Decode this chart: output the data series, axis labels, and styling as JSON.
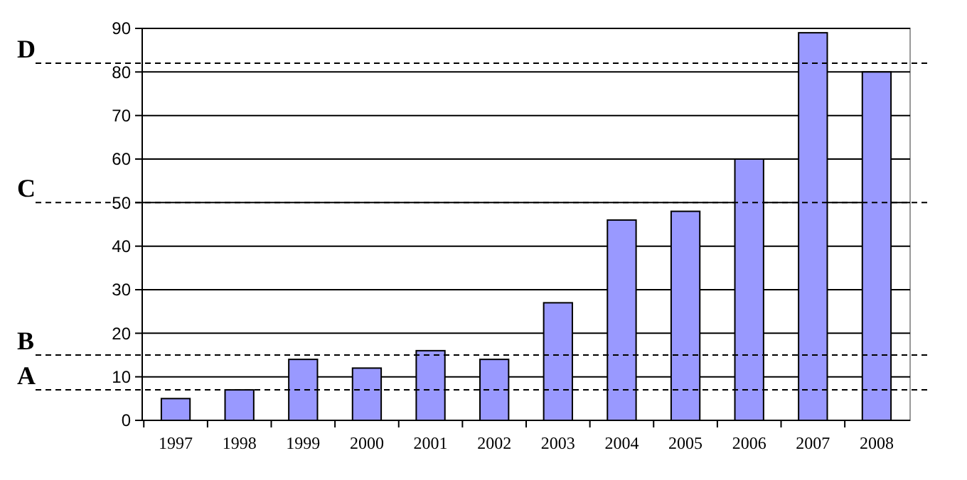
{
  "chart_data": {
    "type": "bar",
    "categories": [
      "1997",
      "1998",
      "1999",
      "2000",
      "2001",
      "2002",
      "2003",
      "2004",
      "2005",
      "2006",
      "2007",
      "2008"
    ],
    "series": [
      {
        "color": "#9999ff",
        "values": [
          5,
          7,
          14,
          12,
          16,
          14,
          27,
          46,
          48,
          60,
          89,
          80
        ]
      }
    ],
    "ylim": [
      0,
      90
    ],
    "yticks": [
      0,
      10,
      20,
      30,
      40,
      50,
      60,
      70,
      80,
      90
    ],
    "grid": "y",
    "ref_lines": [
      {
        "axis": "y",
        "value": 7,
        "label": "A",
        "line_style": "dashed",
        "color": "#000000"
      },
      {
        "axis": "y",
        "value": 15,
        "label": "B",
        "line_style": "dashed",
        "color": "#000000"
      },
      {
        "axis": "y",
        "value": 50,
        "label": "C",
        "line_style": "dashed",
        "color": "#000000"
      },
      {
        "axis": "y",
        "value": 82,
        "label": "D",
        "line_style": "dashed",
        "color": "#000000"
      }
    ]
  }
}
